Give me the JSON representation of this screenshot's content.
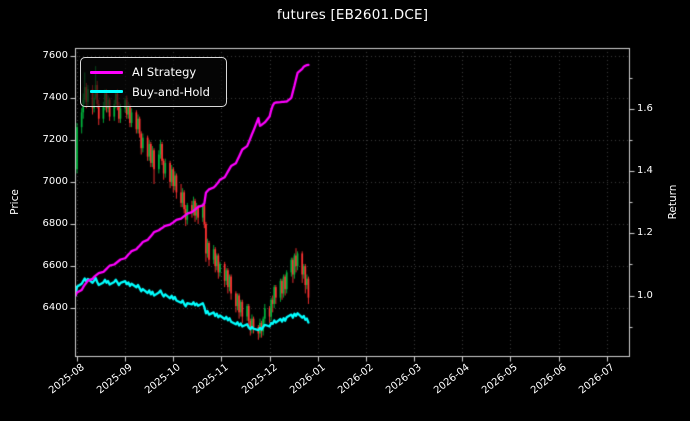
{
  "title": "futures [EB2601.DCE]",
  "colors": {
    "background": "#000000",
    "text": "#ffffff",
    "plot_border": "#d0d0d0",
    "grid": "#3c3c3c",
    "ai_strategy": "#ff00ff",
    "buy_and_hold": "#00ffff",
    "candle_up": "#00b43c",
    "candle_down": "#ff3232"
  },
  "chart_data": {
    "type": "candlestick_with_lines",
    "title": "futures [EB2601.DCE]",
    "grid": {
      "show": true,
      "style": "dotted",
      "color": "#3c3c3c"
    },
    "axes": {
      "left": {
        "label": "Price",
        "ticks": [
          7600,
          7400,
          7200,
          7000,
          6800,
          6600,
          6400
        ],
        "lim": [
          6168,
          7636
        ]
      },
      "right": {
        "label": "Return",
        "ticks": [
          "1.6",
          "1.4",
          "1.2",
          "1.0"
        ],
        "tick_values": [
          1.6,
          1.4,
          1.2,
          1.0
        ],
        "minor_tick_values": [
          1.7,
          1.5,
          1.3,
          1.1,
          0.9
        ],
        "lim": [
          0.803,
          1.795
        ]
      },
      "x": {
        "tick_labels": [
          "2025-08",
          "2025-09",
          "2025-10",
          "2025-11",
          "2025-12",
          "2026-01",
          "2026-02",
          "2026-03",
          "2026-04",
          "2026-05",
          "2026-06",
          "2026-07"
        ],
        "label_rotation_deg": 38,
        "data_range_note": "candles span 2025-07-31 to 2025-12-26; axis extends to 2026-07"
      }
    },
    "legend": {
      "position": "upper-left",
      "entries": [
        {
          "label": "AI Strategy",
          "color": "#ff00ff"
        },
        {
          "label": "Buy-and-Hold",
          "color": "#00ffff"
        }
      ]
    },
    "candles": {
      "up_color": "#00b43c",
      "down_color": "#ff3232",
      "dates": [
        "07-31",
        "08-01",
        "08-04",
        "08-05",
        "08-06",
        "08-07",
        "08-08",
        "08-11",
        "08-12",
        "08-13",
        "08-14",
        "08-15",
        "08-18",
        "08-19",
        "08-20",
        "08-21",
        "08-22",
        "08-25",
        "08-26",
        "08-27",
        "08-28",
        "08-29",
        "09-01",
        "09-02",
        "09-03",
        "09-04",
        "09-05",
        "09-08",
        "09-09",
        "09-10",
        "09-11",
        "09-12",
        "09-15",
        "09-16",
        "09-17",
        "09-18",
        "09-19",
        "09-22",
        "09-23",
        "09-24",
        "09-25",
        "09-26",
        "09-29",
        "09-30",
        "10-01",
        "10-02",
        "10-03",
        "10-06",
        "10-07",
        "10-08",
        "10-09",
        "10-10",
        "10-13",
        "10-14",
        "10-15",
        "10-16",
        "10-17",
        "10-20",
        "10-21",
        "10-22",
        "10-23",
        "10-24",
        "10-27",
        "10-28",
        "10-29",
        "10-30",
        "10-31",
        "11-03",
        "11-04",
        "11-05",
        "11-06",
        "11-07",
        "11-10",
        "11-11",
        "11-12",
        "11-13",
        "11-14",
        "11-17",
        "11-18",
        "11-19",
        "11-20",
        "11-21",
        "11-24",
        "11-25",
        "11-26",
        "11-27",
        "11-28",
        "12-01",
        "12-02",
        "12-03",
        "12-04",
        "12-05",
        "12-08",
        "12-09",
        "12-10",
        "12-11",
        "12-12",
        "12-15",
        "12-16",
        "12-17",
        "12-18",
        "12-19",
        "12-22",
        "12-23",
        "12-24",
        "12-25",
        "12-26"
      ],
      "open": [
        7180,
        7060,
        7260,
        7330,
        7390,
        7450,
        7380,
        7440,
        7350,
        7400,
        7460,
        7370,
        7300,
        7360,
        7420,
        7350,
        7390,
        7310,
        7370,
        7420,
        7360,
        7300,
        7350,
        7390,
        7320,
        7360,
        7280,
        7330,
        7250,
        7300,
        7230,
        7160,
        7210,
        7120,
        7180,
        7090,
        7150,
        7060,
        7130,
        7180,
        7100,
        7040,
        7090,
        7000,
        7060,
        6980,
        7030,
        6950,
        6900,
        6950,
        6870,
        6820,
        6890,
        6860,
        6910,
        6840,
        6880,
        6830,
        6890,
        6800,
        6660,
        6710,
        6630,
        6680,
        6600,
        6650,
        6570,
        6610,
        6530,
        6580,
        6500,
        6550,
        6470,
        6410,
        6460,
        6380,
        6430,
        6360,
        6410,
        6340,
        6300,
        6350,
        6310,
        6280,
        6330,
        6290,
        6350,
        6400,
        6360,
        6440,
        6420,
        6500,
        6450,
        6530,
        6470,
        6550,
        6490,
        6570,
        6630,
        6560,
        6650,
        6600,
        6660,
        6560,
        6600,
        6510,
        6540
      ],
      "high": [
        7200,
        7280,
        7350,
        7420,
        7520,
        7470,
        7460,
        7460,
        7420,
        7550,
        7480,
        7390,
        7380,
        7440,
        7440,
        7410,
        7400,
        7390,
        7430,
        7440,
        7380,
        7370,
        7400,
        7410,
        7380,
        7370,
        7350,
        7340,
        7320,
        7310,
        7240,
        7230,
        7220,
        7200,
        7190,
        7170,
        7160,
        7150,
        7200,
        7190,
        7110,
        7110,
        7100,
        7080,
        7070,
        7050,
        7040,
        6990,
        6970,
        6960,
        6890,
        6900,
        6910,
        6930,
        6920,
        6900,
        6890,
        6900,
        6900,
        6810,
        6730,
        6720,
        6700,
        6690,
        6660,
        6660,
        6620,
        6620,
        6590,
        6590,
        6560,
        6560,
        6480,
        6470,
        6470,
        6440,
        6440,
        6420,
        6420,
        6350,
        6370,
        6360,
        6320,
        6350,
        6340,
        6360,
        6420,
        6410,
        6450,
        6460,
        6510,
        6510,
        6540,
        6540,
        6560,
        6560,
        6580,
        6640,
        6640,
        6660,
        6685,
        6670,
        6670,
        6610,
        6610,
        6560,
        6550
      ],
      "low": [
        6995,
        7040,
        7230,
        7300,
        7370,
        7350,
        7360,
        7320,
        7330,
        7390,
        7350,
        7270,
        7280,
        7340,
        7330,
        7330,
        7290,
        7290,
        7350,
        7340,
        7280,
        7280,
        7330,
        7300,
        7300,
        7260,
        7260,
        7230,
        7230,
        7210,
        7130,
        7140,
        7100,
        7100,
        7070,
        7070,
        6990,
        7040,
        7110,
        7080,
        7010,
        7020,
        6970,
        6980,
        6950,
        6960,
        6920,
        6880,
        6880,
        6850,
        6790,
        6800,
        6830,
        6840,
        6810,
        6820,
        6800,
        6810,
        6780,
        6620,
        6640,
        6600,
        6610,
        6570,
        6580,
        6540,
        6550,
        6500,
        6510,
        6470,
        6480,
        6440,
        6380,
        6390,
        6350,
        6360,
        6330,
        6340,
        6310,
        6270,
        6280,
        6280,
        6250,
        6260,
        6260,
        6270,
        6330,
        6330,
        6340,
        6380,
        6400,
        6420,
        6430,
        6440,
        6450,
        6460,
        6470,
        6550,
        6520,
        6540,
        6570,
        6580,
        6520,
        6540,
        6470,
        6490,
        6420
      ],
      "close": [
        7060,
        7260,
        7330,
        7390,
        7450,
        7380,
        7440,
        7350,
        7400,
        7460,
        7370,
        7300,
        7360,
        7420,
        7350,
        7390,
        7310,
        7370,
        7420,
        7360,
        7300,
        7350,
        7390,
        7320,
        7360,
        7280,
        7330,
        7250,
        7300,
        7230,
        7160,
        7210,
        7120,
        7180,
        7090,
        7150,
        7060,
        7130,
        7180,
        7100,
        7040,
        7090,
        7000,
        7060,
        6980,
        7030,
        6950,
        6900,
        6950,
        6870,
        6820,
        6890,
        6860,
        6910,
        6840,
        6880,
        6830,
        6890,
        6800,
        6660,
        6710,
        6630,
        6680,
        6600,
        6650,
        6570,
        6610,
        6530,
        6580,
        6500,
        6550,
        6470,
        6410,
        6460,
        6380,
        6430,
        6360,
        6410,
        6340,
        6300,
        6350,
        6310,
        6280,
        6330,
        6290,
        6350,
        6400,
        6360,
        6440,
        6420,
        6500,
        6450,
        6530,
        6470,
        6550,
        6490,
        6570,
        6630,
        6560,
        6650,
        6600,
        6660,
        6560,
        6600,
        6510,
        6540,
        6450
      ]
    },
    "series": [
      {
        "name": "AI Strategy",
        "axis": "right",
        "color": "#ff00ff",
        "final_value": 1.741,
        "values": [
          1.0,
          1.01,
          1.018,
          1.027,
          1.035,
          1.041,
          1.048,
          1.054,
          1.06,
          1.064,
          1.068,
          1.072,
          1.076,
          1.081,
          1.086,
          1.091,
          1.096,
          1.1,
          1.104,
          1.108,
          1.112,
          1.116,
          1.12,
          1.126,
          1.132,
          1.137,
          1.143,
          1.149,
          1.155,
          1.16,
          1.166,
          1.172,
          1.179,
          1.185,
          1.191,
          1.197,
          1.204,
          1.21,
          1.214,
          1.217,
          1.221,
          1.224,
          1.228,
          1.232,
          1.235,
          1.239,
          1.243,
          1.247,
          1.251,
          1.255,
          1.259,
          1.263,
          1.268,
          1.272,
          1.276,
          1.281,
          1.285,
          1.29,
          1.296,
          1.33,
          1.336,
          1.341,
          1.347,
          1.352,
          1.358,
          1.364,
          1.372,
          1.38,
          1.389,
          1.398,
          1.407,
          1.416,
          1.425,
          1.436,
          1.447,
          1.458,
          1.469,
          1.48,
          1.492,
          1.505,
          1.518,
          1.53,
          1.57,
          1.545,
          1.548,
          1.552,
          1.556,
          1.575,
          1.595,
          1.61,
          1.618,
          1.62,
          1.621,
          1.622,
          1.622,
          1.623,
          1.623,
          1.635,
          1.655,
          1.674,
          1.695,
          1.715,
          1.728,
          1.735,
          1.738,
          1.74,
          1.741
        ]
      },
      {
        "name": "Buy-and-Hold",
        "axis": "right",
        "color": "#00ffff",
        "start_value": 1.0,
        "final_value": 0.914,
        "derived": "close[i] / close[0]"
      }
    ]
  }
}
